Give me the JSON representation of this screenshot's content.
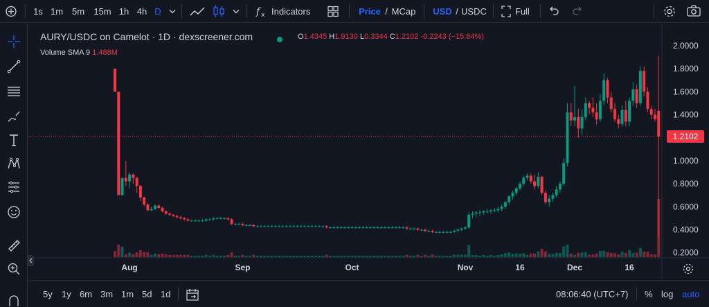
{
  "toolbar": {
    "intervals": [
      "1s",
      "1m",
      "5m",
      "15m",
      "1h",
      "4h",
      "D"
    ],
    "active_interval": "D",
    "indicators_label": "Indicators",
    "price_label": "Price",
    "mcap_label": "MCap",
    "slash": "/",
    "usd_label": "USD",
    "usdc_label": "USDC",
    "full_label": "Full"
  },
  "legend": {
    "title": "AURY/USDC on Camelot · 1D · dexscreener.com",
    "open_key": "O",
    "open": "1.4345",
    "high_key": "H",
    "high": "1.9130",
    "low_key": "L",
    "low": "0.3344",
    "close_key": "C",
    "close": "1.2102",
    "change": "-0.2243 (−15.64%)",
    "volume_label": "Volume",
    "sma_label": "SMA 9",
    "sma_value": "1.488M"
  },
  "bottom": {
    "ranges": [
      "5y",
      "1y",
      "6m",
      "3m",
      "1m",
      "5d",
      "1d"
    ],
    "clock": "08:06:40 (UTC+7)",
    "percent_label": "%",
    "log_label": "log",
    "auto_label": "auto"
  },
  "colors": {
    "up": "#089981",
    "down": "#f23645",
    "background": "#131722",
    "accent": "#2962ff"
  },
  "chart_data": {
    "type": "candlestick",
    "pair": "AURY/USDC",
    "last_price": "1.2102",
    "ylim": [
      0.18,
      2.06
    ],
    "y_ticks": [
      "2.0000",
      "1.8000",
      "1.6000",
      "1.4000",
      "1.2000",
      "1.0000",
      "0.8000",
      "0.6000",
      "0.4000",
      "0.2000"
    ],
    "y_tick_values": [
      2.0,
      1.8,
      1.6,
      1.4,
      1.2,
      1.0,
      0.8,
      0.6,
      0.4,
      0.2
    ],
    "x_ticks": [
      "Aug",
      "Sep",
      "Oct",
      "Nov",
      "16",
      "Dec",
      "16"
    ],
    "x_tick_day_index": [
      4,
      35,
      65,
      96,
      111,
      126,
      141
    ],
    "candles": [
      [
        1.8,
        1.8,
        1.6,
        1.6
      ],
      [
        1.6,
        1.6,
        0.7,
        0.7
      ],
      [
        0.7,
        0.85,
        0.7,
        0.85
      ],
      [
        0.85,
        1.0,
        0.78,
        0.82
      ],
      [
        0.82,
        0.9,
        0.76,
        0.88
      ],
      [
        0.88,
        0.89,
        0.8,
        0.85
      ],
      [
        0.85,
        0.86,
        0.72,
        0.78
      ],
      [
        0.78,
        0.79,
        0.65,
        0.68
      ],
      [
        0.68,
        0.69,
        0.6,
        0.62
      ],
      [
        0.62,
        0.63,
        0.56,
        0.57
      ],
      [
        0.57,
        0.6,
        0.56,
        0.58
      ],
      [
        0.58,
        0.62,
        0.57,
        0.61
      ],
      [
        0.61,
        0.62,
        0.58,
        0.59
      ],
      [
        0.59,
        0.6,
        0.55,
        0.56
      ],
      [
        0.56,
        0.57,
        0.53,
        0.54
      ],
      [
        0.54,
        0.55,
        0.52,
        0.53
      ],
      [
        0.53,
        0.54,
        0.51,
        0.52
      ],
      [
        0.52,
        0.53,
        0.5,
        0.51
      ],
      [
        0.51,
        0.52,
        0.49,
        0.5
      ],
      [
        0.5,
        0.51,
        0.48,
        0.49
      ],
      [
        0.49,
        0.5,
        0.47,
        0.48
      ],
      [
        0.48,
        0.49,
        0.47,
        0.48
      ],
      [
        0.48,
        0.49,
        0.47,
        0.48
      ],
      [
        0.48,
        0.49,
        0.47,
        0.48
      ],
      [
        0.48,
        0.49,
        0.47,
        0.48
      ],
      [
        0.48,
        0.5,
        0.47,
        0.49
      ],
      [
        0.49,
        0.5,
        0.48,
        0.49
      ],
      [
        0.49,
        0.51,
        0.48,
        0.5
      ],
      [
        0.5,
        0.51,
        0.49,
        0.5
      ],
      [
        0.5,
        0.51,
        0.49,
        0.5
      ],
      [
        0.5,
        0.51,
        0.49,
        0.5
      ],
      [
        0.5,
        0.51,
        0.48,
        0.49
      ],
      [
        0.49,
        0.5,
        0.44,
        0.45
      ],
      [
        0.45,
        0.46,
        0.44,
        0.45
      ],
      [
        0.45,
        0.46,
        0.44,
        0.45
      ],
      [
        0.45,
        0.46,
        0.43,
        0.44
      ],
      [
        0.44,
        0.45,
        0.43,
        0.44
      ],
      [
        0.44,
        0.45,
        0.43,
        0.44
      ],
      [
        0.44,
        0.45,
        0.42,
        0.43
      ],
      [
        0.43,
        0.44,
        0.42,
        0.43
      ],
      [
        0.43,
        0.44,
        0.42,
        0.43
      ],
      [
        0.43,
        0.44,
        0.42,
        0.43
      ],
      [
        0.43,
        0.44,
        0.42,
        0.43
      ],
      [
        0.43,
        0.44,
        0.42,
        0.43
      ],
      [
        0.43,
        0.44,
        0.42,
        0.43
      ],
      [
        0.43,
        0.44,
        0.42,
        0.43
      ],
      [
        0.43,
        0.44,
        0.42,
        0.43
      ],
      [
        0.43,
        0.44,
        0.42,
        0.43
      ],
      [
        0.43,
        0.44,
        0.42,
        0.43
      ],
      [
        0.43,
        0.44,
        0.42,
        0.43
      ],
      [
        0.43,
        0.44,
        0.42,
        0.43
      ],
      [
        0.43,
        0.44,
        0.42,
        0.43
      ],
      [
        0.43,
        0.44,
        0.42,
        0.43
      ],
      [
        0.43,
        0.44,
        0.42,
        0.43
      ],
      [
        0.43,
        0.44,
        0.42,
        0.43
      ],
      [
        0.43,
        0.44,
        0.42,
        0.43
      ],
      [
        0.43,
        0.44,
        0.42,
        0.43
      ],
      [
        0.43,
        0.44,
        0.42,
        0.43
      ],
      [
        0.43,
        0.44,
        0.41,
        0.42
      ],
      [
        0.42,
        0.43,
        0.41,
        0.42
      ],
      [
        0.42,
        0.43,
        0.41,
        0.42
      ],
      [
        0.42,
        0.43,
        0.41,
        0.42
      ],
      [
        0.42,
        0.43,
        0.41,
        0.42
      ],
      [
        0.42,
        0.43,
        0.41,
        0.42
      ],
      [
        0.42,
        0.43,
        0.41,
        0.42
      ],
      [
        0.42,
        0.43,
        0.41,
        0.42
      ],
      [
        0.42,
        0.43,
        0.41,
        0.42
      ],
      [
        0.42,
        0.43,
        0.41,
        0.42
      ],
      [
        0.42,
        0.43,
        0.41,
        0.42
      ],
      [
        0.42,
        0.43,
        0.41,
        0.42
      ],
      [
        0.42,
        0.43,
        0.41,
        0.42
      ],
      [
        0.42,
        0.43,
        0.41,
        0.42
      ],
      [
        0.42,
        0.43,
        0.41,
        0.42
      ],
      [
        0.42,
        0.43,
        0.41,
        0.42
      ],
      [
        0.42,
        0.43,
        0.41,
        0.42
      ],
      [
        0.42,
        0.43,
        0.41,
        0.42
      ],
      [
        0.42,
        0.43,
        0.41,
        0.42
      ],
      [
        0.42,
        0.43,
        0.41,
        0.42
      ],
      [
        0.42,
        0.43,
        0.41,
        0.42
      ],
      [
        0.42,
        0.43,
        0.41,
        0.42
      ],
      [
        0.42,
        0.43,
        0.4,
        0.41
      ],
      [
        0.41,
        0.42,
        0.4,
        0.41
      ],
      [
        0.41,
        0.42,
        0.4,
        0.41
      ],
      [
        0.41,
        0.42,
        0.39,
        0.4
      ],
      [
        0.4,
        0.41,
        0.39,
        0.4
      ],
      [
        0.4,
        0.41,
        0.38,
        0.39
      ],
      [
        0.39,
        0.4,
        0.38,
        0.39
      ],
      [
        0.39,
        0.4,
        0.37,
        0.38
      ],
      [
        0.38,
        0.39,
        0.37,
        0.38
      ],
      [
        0.38,
        0.39,
        0.37,
        0.38
      ],
      [
        0.38,
        0.39,
        0.37,
        0.38
      ],
      [
        0.38,
        0.39,
        0.37,
        0.38
      ],
      [
        0.38,
        0.39,
        0.37,
        0.38
      ],
      [
        0.38,
        0.4,
        0.37,
        0.39
      ],
      [
        0.39,
        0.41,
        0.38,
        0.4
      ],
      [
        0.4,
        0.42,
        0.39,
        0.41
      ],
      [
        0.41,
        0.43,
        0.4,
        0.42
      ],
      [
        0.42,
        0.55,
        0.41,
        0.53
      ],
      [
        0.53,
        0.56,
        0.5,
        0.54
      ],
      [
        0.54,
        0.56,
        0.51,
        0.55
      ],
      [
        0.55,
        0.57,
        0.52,
        0.55
      ],
      [
        0.55,
        0.57,
        0.53,
        0.56
      ],
      [
        0.56,
        0.58,
        0.54,
        0.56
      ],
      [
        0.56,
        0.58,
        0.54,
        0.57
      ],
      [
        0.57,
        0.59,
        0.55,
        0.57
      ],
      [
        0.57,
        0.6,
        0.55,
        0.58
      ],
      [
        0.58,
        0.62,
        0.56,
        0.6
      ],
      [
        0.6,
        0.65,
        0.58,
        0.64
      ],
      [
        0.64,
        0.7,
        0.62,
        0.69
      ],
      [
        0.69,
        0.74,
        0.66,
        0.72
      ],
      [
        0.72,
        0.77,
        0.7,
        0.76
      ],
      [
        0.76,
        0.82,
        0.74,
        0.8
      ],
      [
        0.8,
        0.87,
        0.78,
        0.85
      ],
      [
        0.85,
        0.89,
        0.83,
        0.87
      ],
      [
        0.87,
        0.89,
        0.8,
        0.82
      ],
      [
        0.82,
        0.88,
        0.75,
        0.78
      ],
      [
        0.78,
        0.9,
        0.76,
        0.86
      ],
      [
        0.86,
        0.87,
        0.7,
        0.72
      ],
      [
        0.72,
        0.74,
        0.62,
        0.64
      ],
      [
        0.64,
        0.7,
        0.6,
        0.67
      ],
      [
        0.67,
        0.72,
        0.64,
        0.7
      ],
      [
        0.7,
        0.78,
        0.68,
        0.75
      ],
      [
        0.75,
        0.82,
        0.72,
        0.8
      ],
      [
        0.8,
        1.02,
        0.78,
        0.98
      ],
      [
        0.98,
        1.5,
        0.95,
        1.42
      ],
      [
        1.42,
        1.5,
        1.3,
        1.35
      ],
      [
        1.35,
        1.65,
        1.3,
        1.38
      ],
      [
        1.38,
        1.45,
        1.2,
        1.28
      ],
      [
        1.28,
        1.45,
        1.22,
        1.38
      ],
      [
        1.38,
        1.55,
        1.35,
        1.5
      ],
      [
        1.5,
        1.52,
        1.4,
        1.46
      ],
      [
        1.46,
        1.55,
        1.38,
        1.42
      ],
      [
        1.42,
        1.5,
        1.32,
        1.36
      ],
      [
        1.36,
        1.58,
        1.34,
        1.52
      ],
      [
        1.52,
        1.76,
        1.48,
        1.7
      ],
      [
        1.7,
        1.72,
        1.5,
        1.55
      ],
      [
        1.55,
        1.6,
        1.42,
        1.45
      ],
      [
        1.45,
        1.5,
        1.34,
        1.36
      ],
      [
        1.36,
        1.4,
        1.28,
        1.32
      ],
      [
        1.32,
        1.48,
        1.3,
        1.44
      ],
      [
        1.44,
        1.52,
        1.3,
        1.34
      ],
      [
        1.34,
        1.55,
        1.3,
        1.52
      ],
      [
        1.52,
        1.68,
        1.48,
        1.62
      ],
      [
        1.62,
        1.66,
        1.46,
        1.5
      ],
      [
        1.5,
        1.82,
        1.48,
        1.78
      ],
      [
        1.78,
        1.82,
        1.56,
        1.6
      ],
      [
        1.6,
        1.64,
        1.42,
        1.45
      ],
      [
        1.45,
        1.48,
        1.36,
        1.4
      ],
      [
        1.4,
        1.45,
        1.34,
        1.36
      ],
      [
        1.4345,
        1.913,
        0.3344,
        1.2102
      ]
    ]
  }
}
